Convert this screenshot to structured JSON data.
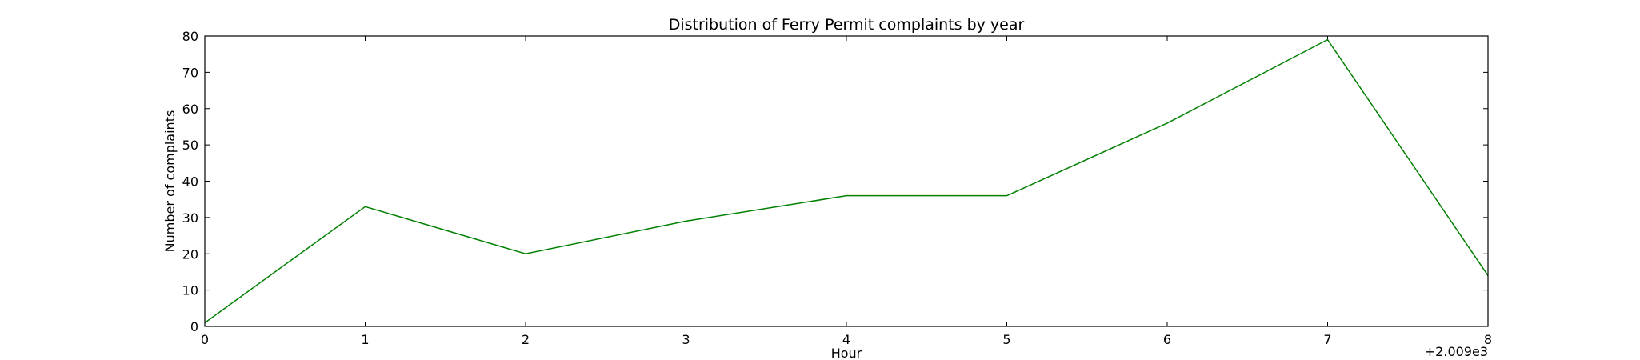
{
  "chart_data": {
    "type": "line",
    "title": "Distribution of  Ferry Permit complaints by year",
    "xlabel": "Hour",
    "ylabel": "Number of complaints",
    "x_offset_label": "+2.009e3",
    "xlim": [
      0,
      8
    ],
    "ylim": [
      0,
      80
    ],
    "x_ticks": [
      0,
      1,
      2,
      3,
      4,
      5,
      6,
      7,
      8
    ],
    "y_ticks": [
      0,
      10,
      20,
      30,
      40,
      50,
      60,
      70,
      80
    ],
    "grid": false,
    "series": [
      {
        "color": "#008000",
        "x": [
          0,
          1,
          2,
          3,
          4,
          5,
          6,
          7,
          8
        ],
        "y": [
          1,
          33,
          20,
          29,
          36,
          36,
          56,
          79,
          14
        ]
      }
    ]
  }
}
